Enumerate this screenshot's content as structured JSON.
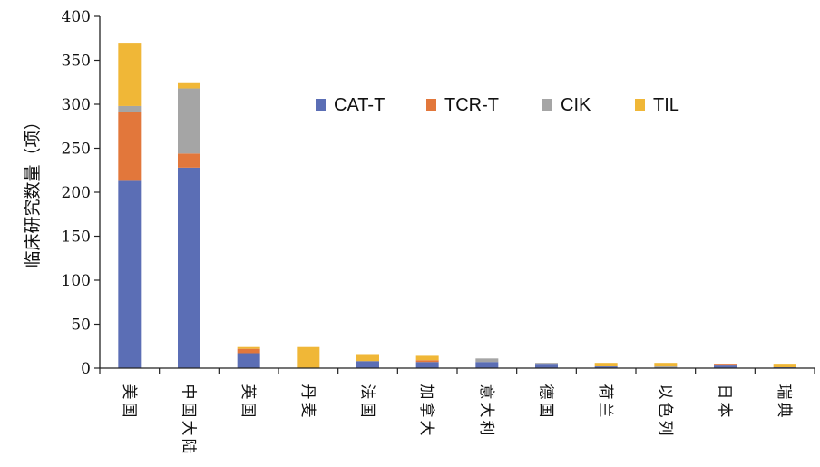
{
  "chart_data": {
    "type": "bar",
    "stacked": true,
    "title": "",
    "xlabel": "",
    "ylabel": "临床研究数量（项）",
    "ylim": [
      0,
      400
    ],
    "yticks": [
      0,
      50,
      100,
      150,
      200,
      250,
      300,
      350,
      400
    ],
    "grid": false,
    "legend_position": "top-center",
    "categories": [
      "美国",
      "中国大陆",
      "英国",
      "丹麦",
      "法国",
      "加拿大",
      "意大利",
      "德国",
      "荷兰",
      "以色列",
      "日本",
      "瑞典"
    ],
    "series": [
      {
        "name": "CAT-T",
        "color": "#5b6eb5",
        "values": [
          213,
          228,
          17,
          0,
          8,
          7,
          7,
          5,
          2,
          0,
          3,
          1
        ]
      },
      {
        "name": "TCR-T",
        "color": "#e2773b",
        "values": [
          78,
          16,
          5,
          0,
          0,
          2,
          0,
          0,
          0,
          0,
          2,
          0
        ]
      },
      {
        "name": "CIK",
        "color": "#a5a5a5",
        "values": [
          7,
          74,
          0,
          0,
          0,
          0,
          4,
          1,
          0,
          2,
          0,
          0
        ]
      },
      {
        "name": "TIL",
        "color": "#f0b737",
        "values": [
          72,
          7,
          2,
          24,
          8,
          5,
          0,
          0,
          4,
          4,
          0,
          4
        ]
      }
    ]
  }
}
